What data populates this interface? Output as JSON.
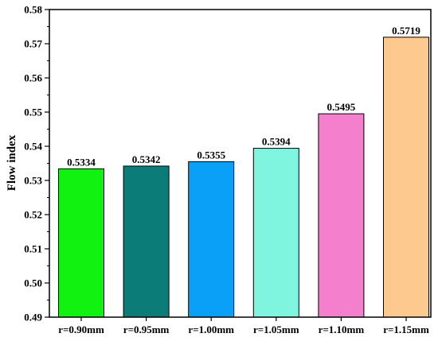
{
  "chart_data": {
    "type": "bar",
    "title": "",
    "xlabel": "",
    "ylabel": "Flow index",
    "categories": [
      "r=0.90mm",
      "r=0.95mm",
      "r=1.00mm",
      "r=1.05mm",
      "r=1.10mm",
      "r=1.15mm"
    ],
    "values": [
      0.5334,
      0.5342,
      0.5355,
      0.5394,
      0.5495,
      0.5719
    ],
    "data_labels": [
      "0.5334",
      "0.5342",
      "0.5355",
      "0.5394",
      "0.5495",
      "0.5719"
    ],
    "colors": [
      "#11f211",
      "#0b7c78",
      "#0aa0f7",
      "#7ff5e0",
      "#f47fcc",
      "#fdc98f"
    ],
    "ylim": [
      0.49,
      0.58
    ],
    "yticks": [
      "0.49",
      "0.50",
      "0.51",
      "0.52",
      "0.53",
      "0.54",
      "0.55",
      "0.56",
      "0.57",
      "0.58"
    ],
    "grid": false,
    "legend": "none"
  }
}
